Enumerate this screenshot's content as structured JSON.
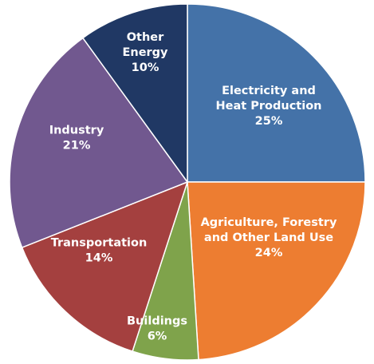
{
  "chart_data": {
    "type": "pie",
    "title": "",
    "slices": [
      {
        "label_lines": [
          "Electricity and",
          "Heat Production"
        ],
        "value": 25,
        "value_label": "25%",
        "color": "#4472a8"
      },
      {
        "label_lines": [
          "Agriculture, Forestry",
          "and Other Land Use"
        ],
        "value": 24,
        "value_label": "24%",
        "color": "#ed7d31"
      },
      {
        "label_lines": [
          "Buildings"
        ],
        "value": 6,
        "value_label": "6%",
        "color": "#7fa34b"
      },
      {
        "label_lines": [
          "Transportation"
        ],
        "value": 14,
        "value_label": "14%",
        "color": "#a4403f"
      },
      {
        "label_lines": [
          "Industry"
        ],
        "value": 21,
        "value_label": "21%",
        "color": "#71588f"
      },
      {
        "label_lines": [
          "Other",
          "Energy"
        ],
        "value": 10,
        "value_label": "10%",
        "color": "#203864"
      }
    ]
  }
}
